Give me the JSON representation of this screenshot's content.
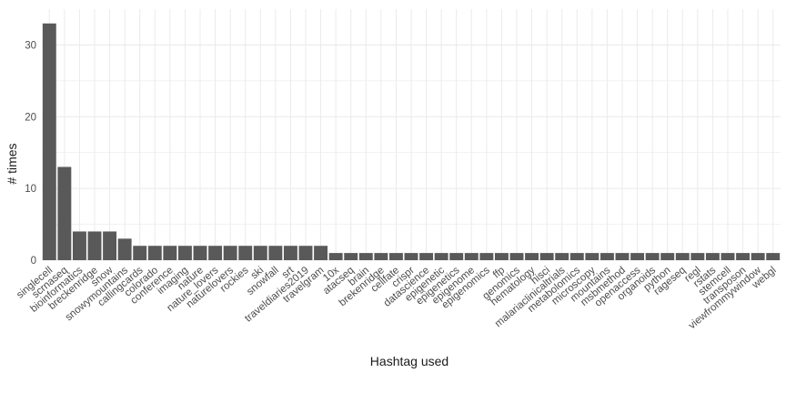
{
  "chart_data": {
    "type": "bar",
    "xlabel": "Hashtag used",
    "ylabel": "# times",
    "ylim": [
      0,
      35
    ],
    "yticks": [
      0,
      10,
      20,
      30
    ],
    "grid": true,
    "bar_color": "#595959",
    "grid_color": "#ebebeb",
    "categories": [
      "singlecell",
      "scrnaseq",
      "bioinformatics",
      "breckenridge",
      "snow",
      "snowymountains",
      "callingcards",
      "colorado",
      "conference",
      "imaging",
      "nature",
      "nature_lovers",
      "naturelovers",
      "rockies",
      "ski",
      "snowfall",
      "srt",
      "traveldiaries2019",
      "travelgram",
      "10x",
      "atacseq",
      "brain",
      "brekenridge",
      "cellfate",
      "crispr",
      "datascience",
      "epigenetic",
      "epigenetics",
      "epigenome",
      "epigenomics",
      "ffp",
      "genomics",
      "hematology",
      "hisci",
      "malariaclinicaltrials",
      "metabolomics",
      "microscopy",
      "mountains",
      "msbmethod",
      "openaccess",
      "organoids",
      "python",
      "rageseq",
      "regl",
      "rstats",
      "stemcell",
      "transposon",
      "viewfrommywindow",
      "webgl"
    ],
    "values": [
      33,
      13,
      4,
      4,
      4,
      3,
      2,
      2,
      2,
      2,
      2,
      2,
      2,
      2,
      2,
      2,
      2,
      2,
      2,
      1,
      1,
      1,
      1,
      1,
      1,
      1,
      1,
      1,
      1,
      1,
      1,
      1,
      1,
      1,
      1,
      1,
      1,
      1,
      1,
      1,
      1,
      1,
      1,
      1,
      1,
      1,
      1,
      1,
      1
    ]
  }
}
